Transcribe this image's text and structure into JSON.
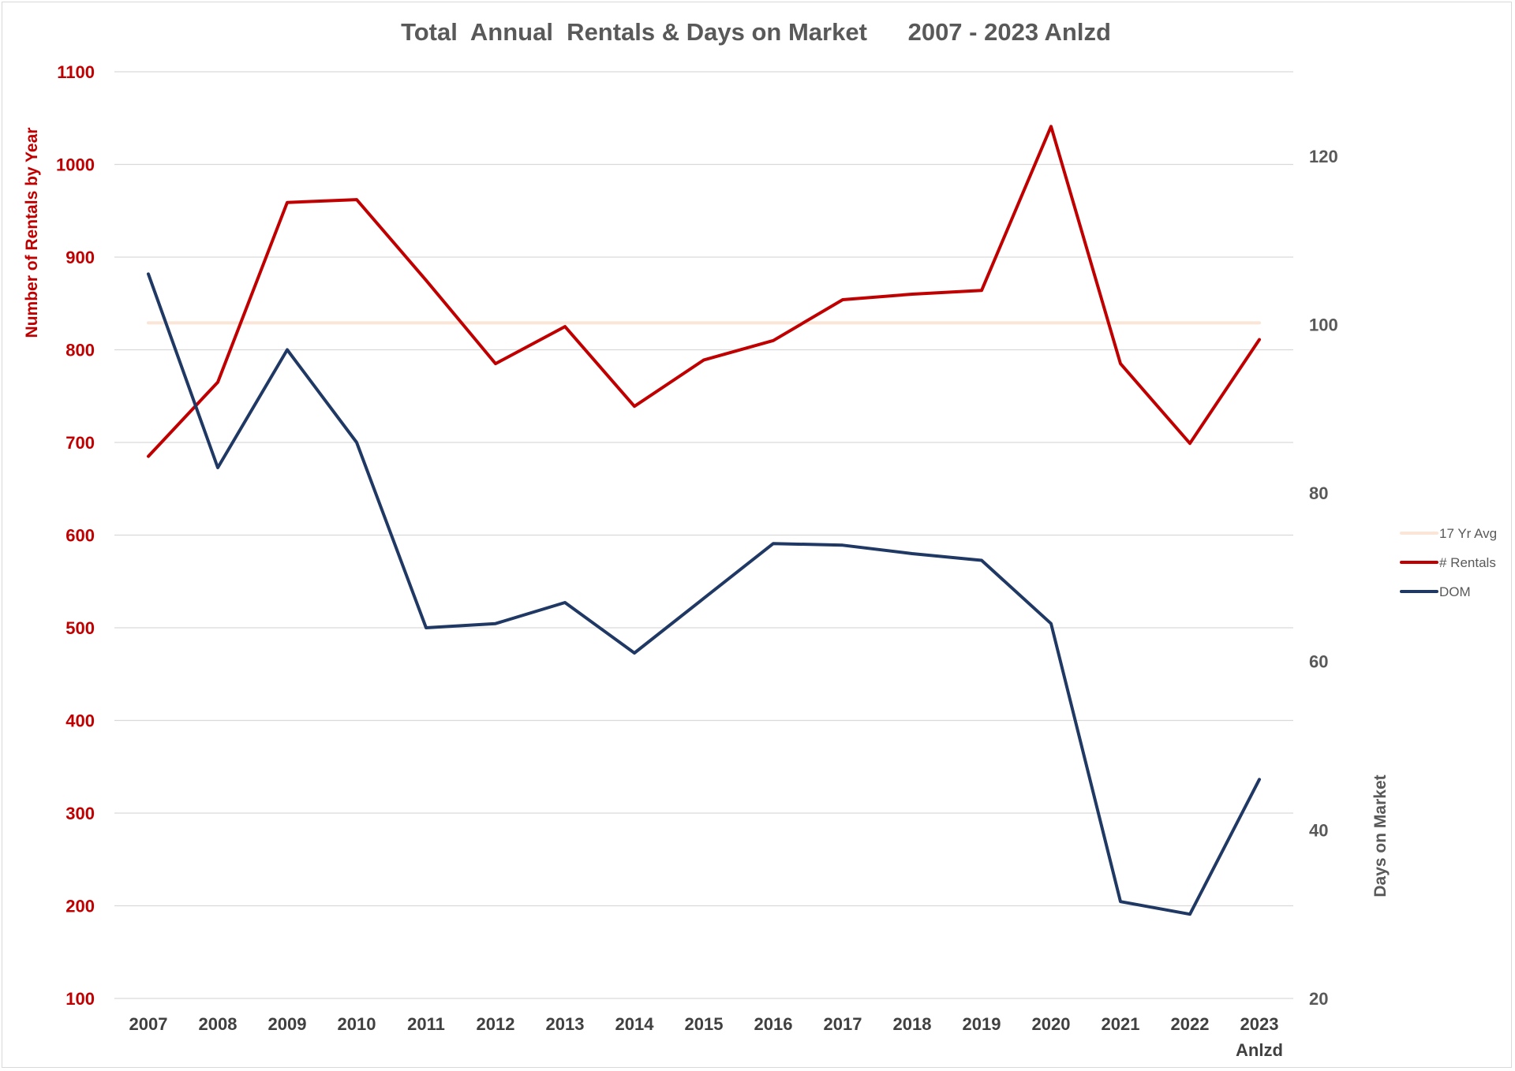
{
  "chart_data": {
    "type": "line",
    "title": "Total  Annual  Rentals & Days on Market      2007 - 2023 Anlzd",
    "categories": [
      "2007",
      "2008",
      "2009",
      "2010",
      "2011",
      "2012",
      "2013",
      "2014",
      "2015",
      "2016",
      "2017",
      "2018",
      "2019",
      "2020",
      "2021",
      "2022",
      "2023"
    ],
    "category_sublabels": {
      "2023": "Anlzd"
    },
    "ylabel": "Number of Rentals by Year",
    "ylabel_right": "Days on Market",
    "ylim": [
      100,
      1100
    ],
    "yticks": [
      100,
      200,
      300,
      400,
      500,
      600,
      700,
      800,
      900,
      1000,
      1100
    ],
    "ylim_right": [
      20,
      130
    ],
    "yticks_right": [
      20,
      40,
      60,
      80,
      100,
      120
    ],
    "grid": true,
    "legend_position": "right",
    "series": [
      {
        "name": "17 Yr Avg",
        "axis": "left",
        "color": "#fbe5d6",
        "values": [
          829,
          829,
          829,
          829,
          829,
          829,
          829,
          829,
          829,
          829,
          829,
          829,
          829,
          829,
          829,
          829,
          829
        ]
      },
      {
        "name": "# Rentals",
        "axis": "left",
        "color": "#c00000",
        "values": [
          685,
          765,
          959,
          962,
          875,
          785,
          825,
          739,
          789,
          810,
          854,
          860,
          864,
          1041,
          785,
          699,
          811
        ]
      },
      {
        "name": "DOM",
        "axis": "right",
        "color": "#1f3864",
        "values": [
          106,
          83,
          97,
          86,
          64,
          64.5,
          67,
          61,
          67.5,
          74,
          73.8,
          72.8,
          72,
          64.5,
          31.5,
          30,
          46
        ]
      }
    ]
  }
}
